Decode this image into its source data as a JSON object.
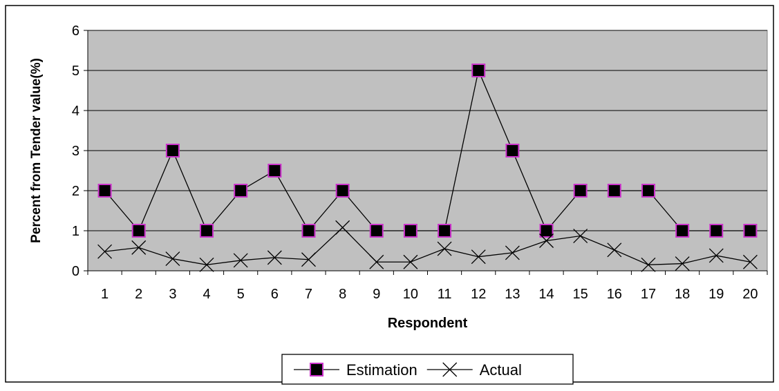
{
  "chart_data": {
    "type": "line",
    "title": "",
    "xlabel": "Respondent",
    "ylabel": "Percent from Tender value(%)",
    "categories": [
      "1",
      "2",
      "3",
      "4",
      "5",
      "6",
      "7",
      "8",
      "9",
      "10",
      "11",
      "12",
      "13",
      "14",
      "15",
      "16",
      "17",
      "18",
      "19",
      "20"
    ],
    "ylim": [
      0,
      6
    ],
    "yticks": [
      "0",
      "1",
      "2",
      "3",
      "4",
      "5",
      "6"
    ],
    "grid": true,
    "legend_position": "bottom",
    "series": [
      {
        "name": "Estimation",
        "marker": "square",
        "marker_fill": "#000000",
        "marker_stroke": "#cc33cc",
        "values": [
          2,
          1,
          3,
          1,
          2,
          2.5,
          1,
          2,
          1,
          1,
          1,
          5,
          3,
          1,
          2,
          2,
          2,
          1,
          1,
          1
        ]
      },
      {
        "name": "Actual",
        "marker": "x",
        "values": [
          0.48,
          0.58,
          0.3,
          0.15,
          0.26,
          0.33,
          0.28,
          1.08,
          0.22,
          0.22,
          0.55,
          0.35,
          0.45,
          0.75,
          0.87,
          0.52,
          0.15,
          0.18,
          0.38,
          0.22
        ]
      }
    ],
    "colors": {
      "plot_background": "#c0c0c0",
      "line": "#000000",
      "gridline": "#000000"
    }
  }
}
